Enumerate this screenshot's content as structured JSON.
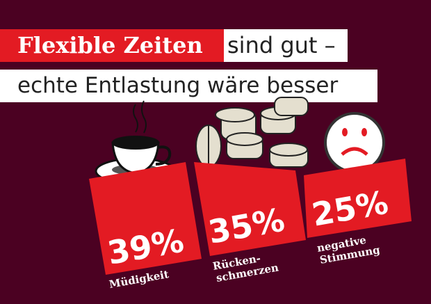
{
  "headline": {
    "highlight": "Flexible Zeiten",
    "rest_line1": "sind gut –",
    "line2": "echte Entlastung wäre besser"
  },
  "stats": [
    {
      "value": "39%",
      "label_lines": [
        "Müdigkeit"
      ],
      "icon": "coffee-cup-icon"
    },
    {
      "value": "35%",
      "label_lines": [
        "Rücken-",
        "schmerzen"
      ],
      "icon": "pills-icon"
    },
    {
      "value": "25%",
      "label_lines": [
        "negative",
        "Stimmung"
      ],
      "icon": "sad-face-pill-icon"
    }
  ],
  "colors": {
    "background": "#4b0122",
    "accent": "#e31b23",
    "text_light": "#ffffff"
  }
}
